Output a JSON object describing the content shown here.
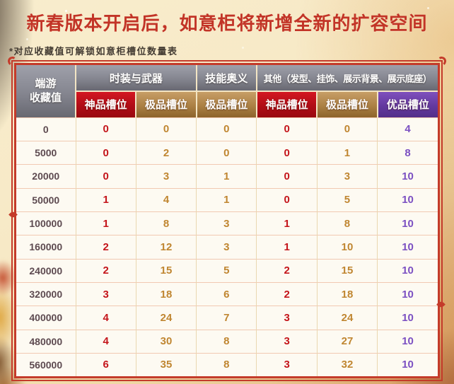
{
  "page": {
    "title": "新春版本开启后，如意柜将新增全新的扩容空间",
    "note": "*对应收藏值可解锁如意柜槽位数量表"
  },
  "colors": {
    "title-red": "#c23427",
    "frame-red": "#c43b2a",
    "header-gray": "#84858f",
    "tier-red": "#b00d16",
    "tier-gold": "#ab8044",
    "tier-purple": "#63399f",
    "value-red": "#c4151b",
    "value-gold": "#c08631",
    "value-purple": "#7b50c2",
    "row-label": "#5d4a50",
    "bg-cream": "#f8ecca"
  },
  "table": {
    "corner_header": {
      "line1": "端游",
      "line2": "收藏值"
    },
    "groups": [
      {
        "label": "时装与武器",
        "span": 2
      },
      {
        "label": "技能奥义",
        "span": 1
      },
      {
        "label": "其他（发型、挂饰、展示背景、展示底座）",
        "span": 3
      }
    ],
    "subheaders": [
      {
        "label": "神品槽位",
        "tier": "red"
      },
      {
        "label": "极品槽位",
        "tier": "gold"
      },
      {
        "label": "极品槽位",
        "tier": "gold"
      },
      {
        "label": "神品槽位",
        "tier": "red"
      },
      {
        "label": "极品槽位",
        "tier": "gold"
      },
      {
        "label": "优品槽位",
        "tier": "purple"
      }
    ],
    "rows": [
      {
        "collection_value": "0",
        "slots": [
          0,
          0,
          0,
          0,
          0,
          4
        ]
      },
      {
        "collection_value": "5000",
        "slots": [
          0,
          2,
          0,
          0,
          1,
          8
        ]
      },
      {
        "collection_value": "20000",
        "slots": [
          0,
          3,
          1,
          0,
          3,
          10
        ]
      },
      {
        "collection_value": "50000",
        "slots": [
          1,
          4,
          1,
          0,
          5,
          10
        ]
      },
      {
        "collection_value": "100000",
        "slots": [
          1,
          8,
          3,
          1,
          8,
          10
        ]
      },
      {
        "collection_value": "160000",
        "slots": [
          2,
          12,
          3,
          1,
          10,
          10
        ]
      },
      {
        "collection_value": "240000",
        "slots": [
          2,
          15,
          5,
          2,
          15,
          10
        ]
      },
      {
        "collection_value": "320000",
        "slots": [
          3,
          18,
          6,
          2,
          18,
          10
        ]
      },
      {
        "collection_value": "400000",
        "slots": [
          4,
          24,
          7,
          3,
          24,
          10
        ]
      },
      {
        "collection_value": "480000",
        "slots": [
          4,
          30,
          8,
          3,
          27,
          10
        ]
      },
      {
        "collection_value": "560000",
        "slots": [
          6,
          35,
          8,
          3,
          32,
          10
        ]
      }
    ]
  }
}
